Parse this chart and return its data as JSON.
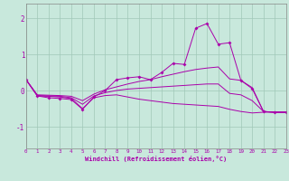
{
  "xlabel": "Windchill (Refroidissement éolien,°C)",
  "xlim": [
    0,
    23
  ],
  "ylim": [
    -1.6,
    2.4
  ],
  "yticks": [
    -1,
    0,
    1,
    2
  ],
  "xticks": [
    0,
    1,
    2,
    3,
    4,
    5,
    6,
    7,
    8,
    9,
    10,
    11,
    12,
    13,
    14,
    15,
    16,
    17,
    18,
    19,
    20,
    21,
    22,
    23
  ],
  "bg_color": "#c8e8dc",
  "grid_color": "#a0c8b8",
  "line_color": "#aa00aa",
  "spine_color": "#888888",
  "marked_line": [
    0.3,
    -0.15,
    -0.2,
    -0.22,
    -0.25,
    -0.52,
    -0.18,
    0.0,
    0.3,
    0.35,
    0.38,
    0.3,
    0.5,
    0.75,
    0.72,
    1.72,
    1.85,
    1.28,
    1.32,
    0.28,
    0.05,
    -0.58,
    -0.6,
    -0.6
  ],
  "smooth_lines": [
    [
      0.3,
      -0.12,
      -0.13,
      -0.14,
      -0.16,
      -0.28,
      -0.1,
      0.02,
      0.1,
      0.18,
      0.25,
      0.3,
      0.38,
      0.45,
      0.52,
      0.58,
      0.62,
      0.65,
      0.32,
      0.28,
      0.08,
      -0.58,
      -0.6,
      -0.6
    ],
    [
      0.3,
      -0.14,
      -0.15,
      -0.16,
      -0.2,
      -0.38,
      -0.15,
      -0.06,
      0.0,
      0.04,
      0.06,
      0.08,
      0.1,
      0.12,
      0.14,
      0.16,
      0.18,
      0.18,
      -0.08,
      -0.12,
      -0.28,
      -0.58,
      -0.6,
      -0.6
    ],
    [
      0.3,
      -0.15,
      -0.16,
      -0.18,
      -0.22,
      -0.5,
      -0.2,
      -0.14,
      -0.12,
      -0.18,
      -0.24,
      -0.28,
      -0.32,
      -0.36,
      -0.38,
      -0.4,
      -0.42,
      -0.44,
      -0.52,
      -0.58,
      -0.62,
      -0.6,
      -0.6,
      -0.6
    ]
  ]
}
